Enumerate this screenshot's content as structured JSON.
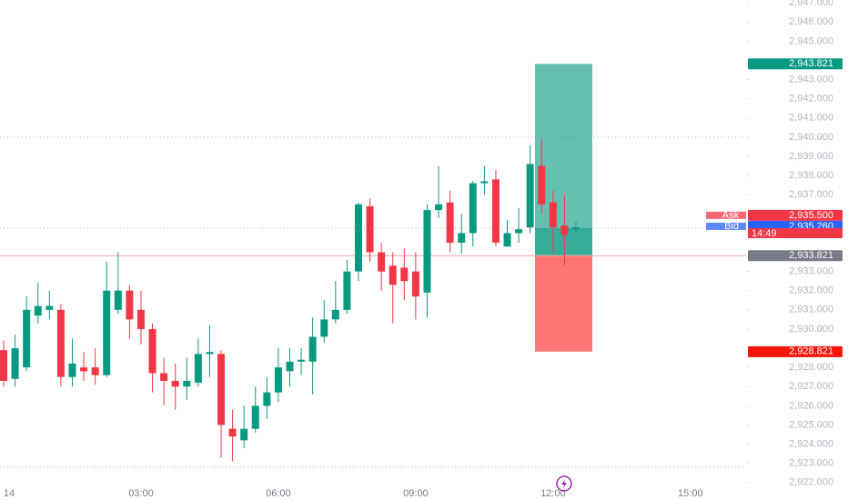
{
  "chart_data": {
    "type": "candlestick",
    "categories": [
      "14",
      null,
      null,
      null,
      null,
      null,
      null,
      null,
      null,
      null,
      null,
      null,
      "03:00",
      null,
      null,
      null,
      null,
      null,
      null,
      null,
      null,
      null,
      null,
      null,
      "06:00",
      null,
      null,
      null,
      null,
      null,
      null,
      null,
      null,
      null,
      null,
      null,
      "09:00",
      null,
      null,
      null,
      null,
      null,
      null,
      null,
      null,
      null,
      null,
      null,
      "12:00",
      null,
      null,
      null,
      null,
      null,
      null,
      null,
      null,
      null,
      null,
      null,
      "15:00"
    ],
    "open": [
      2928.9,
      2927.4,
      2928.0,
      2930.7,
      2931.0,
      2931.0,
      2927.5,
      2928.0,
      2928.0,
      2927.6,
      2931.0,
      2932.0,
      2931.0,
      2930.0,
      2927.7,
      2927.3,
      2927.0,
      2927.2,
      2928.7,
      2928.7,
      2924.8,
      2924.2,
      2924.8,
      2926.0,
      2926.7,
      2927.8,
      2928.3,
      2928.3,
      2929.6,
      2930.5,
      2931.0,
      2933.0,
      2936.4,
      2934.0,
      2933.3,
      2933.2,
      2933.0,
      2931.9,
      2936.2,
      2936.6,
      2934.5,
      2935.0,
      2937.6,
      2937.8,
      2934.3,
      2935.0,
      2935.3,
      2938.5,
      2936.6,
      2935.4,
      2935.2,
      null,
      null,
      null,
      null,
      null,
      null,
      null,
      null,
      null,
      null
    ],
    "high": [
      2929.4,
      2929.7,
      2931.7,
      2932.4,
      2932.0,
      2931.3,
      2929.5,
      2928.8,
      2929.0,
      2933.5,
      2934.0,
      2932.3,
      2932.0,
      2930.3,
      2928.5,
      2928.2,
      2928.5,
      2929.5,
      2930.2,
      2928.9,
      2925.8,
      2926.0,
      2927.0,
      2927.5,
      2929.0,
      2929.0,
      2929.0,
      2930.6,
      2931.5,
      2932.5,
      2933.6,
      2936.6,
      2936.8,
      2934.5,
      2934.0,
      2934.2,
      2934.0,
      2936.5,
      2938.5,
      2937.2,
      2936.0,
      2937.7,
      2938.5,
      2938.3,
      2935.7,
      2936.3,
      2939.6,
      2939.9,
      2937.2,
      2937.0,
      2935.6,
      null,
      null,
      null,
      null,
      null,
      null,
      null,
      null,
      null,
      null
    ],
    "low": [
      2927.0,
      2927.0,
      2927.8,
      2930.3,
      2930.5,
      2927.0,
      2927.0,
      2927.3,
      2927.1,
      2927.5,
      2930.8,
      2929.5,
      2929.2,
      2926.7,
      2926.0,
      2925.8,
      2926.3,
      2927.0,
      2927.5,
      2923.3,
      2923.1,
      2923.8,
      2924.6,
      2925.3,
      2926.2,
      2927.0,
      2927.6,
      2926.6,
      2929.3,
      2930.3,
      2930.8,
      2932.5,
      2933.5,
      2932.0,
      2930.3,
      2931.5,
      2930.5,
      2930.6,
      2935.8,
      2934.0,
      2933.9,
      2934.3,
      2937.0,
      2934.3,
      2934.3,
      2934.5,
      2935.0,
      2936.0,
      2934.0,
      2933.3,
      2935.0,
      null,
      null,
      null,
      null,
      null,
      null,
      null,
      null,
      null,
      null
    ],
    "close": [
      2927.3,
      2929.0,
      2931.0,
      2931.2,
      2931.2,
      2927.5,
      2928.2,
      2927.8,
      2927.6,
      2932.0,
      2932.0,
      2930.5,
      2930.0,
      2927.7,
      2927.3,
      2927.0,
      2927.3,
      2928.7,
      2928.8,
      2925.0,
      2924.4,
      2924.8,
      2926.0,
      2926.7,
      2928.0,
      2928.3,
      2928.4,
      2929.6,
      2930.5,
      2931.0,
      2933.0,
      2936.5,
      2934.0,
      2933.0,
      2932.3,
      2932.5,
      2931.7,
      2936.2,
      2936.5,
      2934.5,
      2935.0,
      2937.6,
      2937.7,
      2934.5,
      2935.0,
      2935.2,
      2938.6,
      2936.5,
      2935.3,
      2934.9,
      2935.3,
      null,
      null,
      null,
      null,
      null,
      null,
      null,
      null,
      null,
      null
    ],
    "up_color": "#089981",
    "down_color": "#f23645",
    "ylim": [
      2921.8,
      2947.15
    ],
    "yticks": [
      {
        "value": 2947,
        "label": "2,947.000"
      },
      {
        "value": 2946,
        "label": "2,946.000"
      },
      {
        "value": 2945,
        "label": "2,945.000"
      },
      {
        "value": 2943,
        "label": "2,943.000"
      },
      {
        "value": 2942,
        "label": "2,942.000"
      },
      {
        "value": 2941,
        "label": "2,941.000"
      },
      {
        "value": 2940,
        "label": "2,940.000"
      },
      {
        "value": 2939,
        "label": "2,939.000"
      },
      {
        "value": 2938,
        "label": "2,938.000"
      },
      {
        "value": 2937,
        "label": "2,937.000"
      },
      {
        "value": 2933,
        "label": "2,933.000"
      },
      {
        "value": 2932,
        "label": "2,932.000"
      },
      {
        "value": 2931,
        "label": "2,931.000"
      },
      {
        "value": 2930,
        "label": "2,930.000"
      },
      {
        "value": 2928,
        "label": "2,928.000"
      },
      {
        "value": 2927,
        "label": "2,927.000"
      },
      {
        "value": 2926,
        "label": "2,926.000"
      },
      {
        "value": 2925,
        "label": "2,925.000"
      },
      {
        "value": 2924,
        "label": "2,924.000"
      },
      {
        "value": 2923,
        "label": "2,923.000"
      },
      {
        "value": 2922,
        "label": "2,922.000"
      }
    ],
    "levels": [
      2940,
      2922.8
    ],
    "position": {
      "take_profit": {
        "value": 2943.821,
        "label": "2,943.821",
        "color": "#089981"
      },
      "entry": {
        "value": 2933.821,
        "label": "2,933.821",
        "color": "#787b86"
      },
      "stop_loss": {
        "value": 2928.821,
        "label": "2,928.821",
        "color": "#f7160b"
      }
    },
    "quotes": [
      {
        "name": "Ask",
        "value": 2935.5,
        "label": "2,935.500",
        "color": "#f23645"
      },
      {
        "name": "Bid",
        "value": 2935.26,
        "label": "2,935.260",
        "color": "#2962ff"
      }
    ],
    "countdown": "14:49"
  }
}
